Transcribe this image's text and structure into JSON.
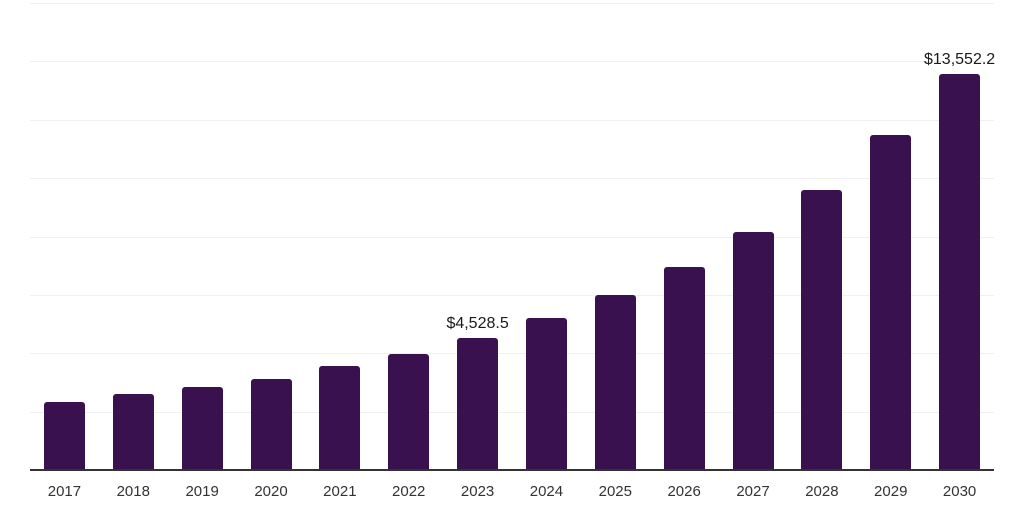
{
  "chart_data": {
    "type": "bar",
    "title": "",
    "xlabel": "",
    "ylabel": "",
    "categories": [
      "2017",
      "2018",
      "2019",
      "2020",
      "2021",
      "2022",
      "2023",
      "2024",
      "2025",
      "2026",
      "2027",
      "2028",
      "2029",
      "2030"
    ],
    "values": [
      2340,
      2590,
      2840,
      3110,
      3560,
      3980,
      4528.5,
      5200,
      6000,
      6970,
      8140,
      9600,
      11480,
      13552.2
    ],
    "data_labels": [
      "",
      "",
      "",
      "",
      "",
      "",
      "$4,528.5",
      "",
      "",
      "",
      "",
      "",
      "",
      "$13,552.2"
    ],
    "ylim": [
      0,
      16000
    ],
    "gridline_step": 2000,
    "grid": true,
    "legend": false,
    "y_axis_labels_visible": false,
    "colors": {
      "bar": "#38114e",
      "gridline": "#f0f0f1",
      "axis_line": "#333333",
      "tick_label": "#333333",
      "data_label": "#1a1a1a",
      "background": "#ffffff"
    }
  }
}
